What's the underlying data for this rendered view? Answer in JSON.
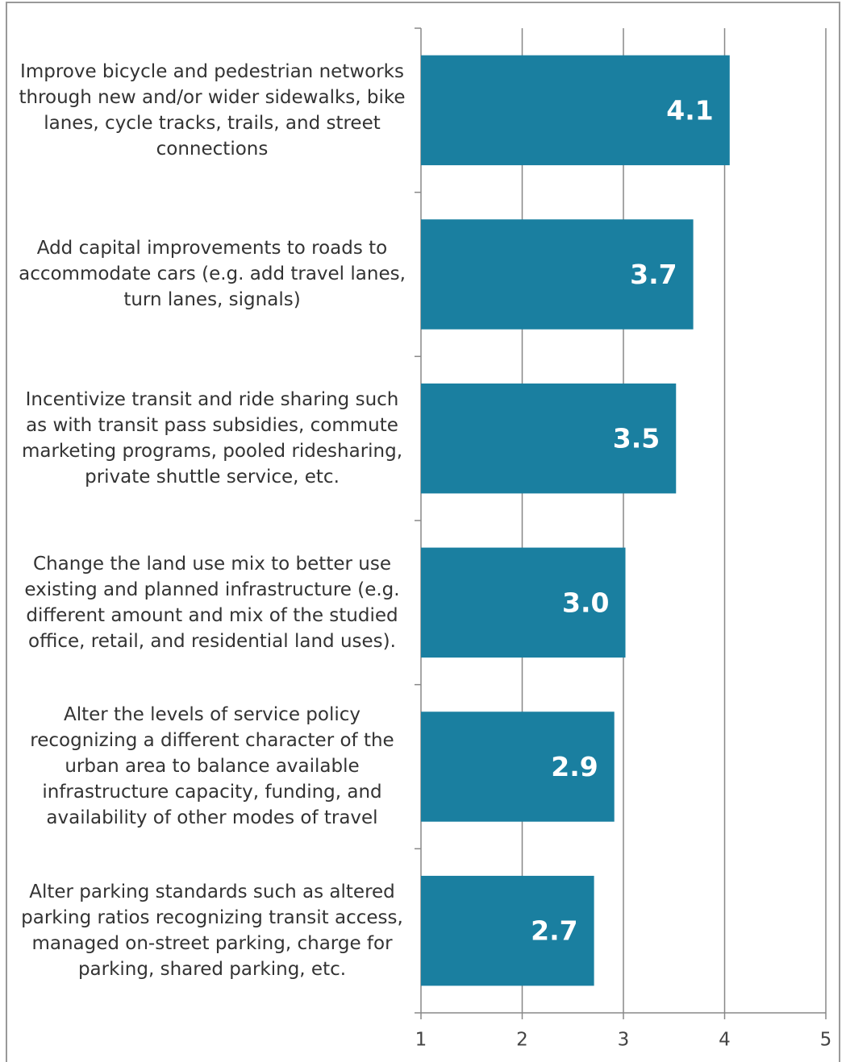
{
  "chart_data": {
    "type": "barh",
    "categories": [
      "Improve bicycle and pedestrian networks through new and/or wider sidewalks, bike lanes, cycle tracks, trails, and street connections",
      "Add capital improvements to roads to accommodate cars (e.g. add travel lanes, turn lanes, signals)",
      "Incentivize transit and ride sharing such as with transit pass subsidies, commute marketing programs, pooled ridesharing, private shuttle service, etc.",
      "Change the land use mix to better use existing and planned infrastructure (e.g. different amount and mix of the studied office, retail, and residential land uses).",
      "Alter the levels of service policy recognizing a different character of the urban area to balance available infrastructure capacity, funding, and availability of other modes of travel",
      "Alter parking standards such as altered parking ratios recognizing transit access, managed on-street parking, charge for parking, shared parking, etc."
    ],
    "values": [
      4.05,
      3.69,
      3.52,
      3.02,
      2.91,
      2.71
    ],
    "value_labels": [
      "4.1",
      "3.7",
      "3.5",
      "3.0",
      "2.9",
      "2.7"
    ],
    "color": "#1a7fa0",
    "xlim": [
      1,
      5
    ],
    "xticks": [
      1,
      2,
      3,
      4,
      5
    ],
    "grid": true
  }
}
